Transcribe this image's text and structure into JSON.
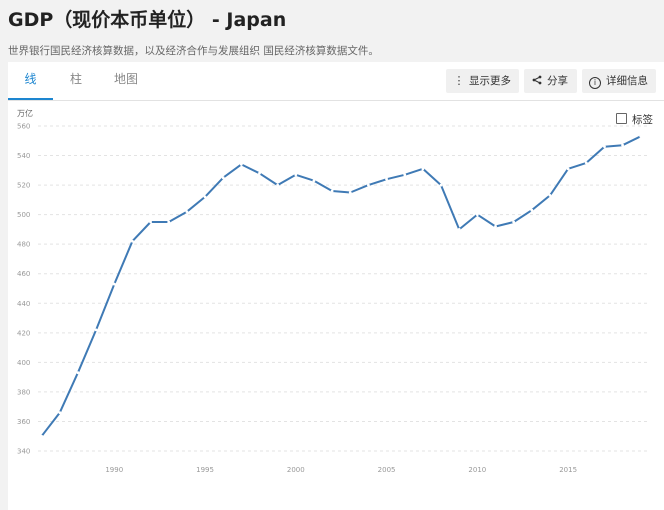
{
  "header": {
    "title": "GDP（现价本币单位） - Japan",
    "subtitle": "世界银行国民经济核算数据，以及经济合作与发展组织 国民经济核算数据文件。"
  },
  "tabs": [
    {
      "label": "线",
      "active": true
    },
    {
      "label": "柱",
      "active": false
    },
    {
      "label": "地图",
      "active": false
    }
  ],
  "actions": {
    "more_label": "显示更多",
    "share_label": "分享",
    "detail_label": "详细信息",
    "more_icon": "vertical-ellipsis-icon",
    "share_icon": "share-icon",
    "detail_icon": "info-icon"
  },
  "label_toggle": {
    "label": "标签",
    "checked": false
  },
  "colors": {
    "line": "#3f7ab5",
    "accent": "#1d86d0",
    "grid": "#e3e3e3"
  },
  "chart_data": {
    "type": "line",
    "unit": "万亿",
    "ylim": [
      340,
      560
    ],
    "yticks": [
      340,
      360,
      380,
      400,
      420,
      440,
      460,
      480,
      500,
      520,
      540,
      560
    ],
    "xticks": [
      1990,
      1995,
      2000,
      2005,
      2010,
      2015
    ],
    "grid": true,
    "series": [
      {
        "x": [
          1986,
          1987,
          1988,
          1989,
          1990,
          1991,
          1992,
          1993,
          1994,
          1995,
          1996,
          1997,
          1998,
          1999,
          2000,
          2001,
          2002,
          2003,
          2004,
          2005,
          2006,
          2007,
          2008,
          2009,
          2010,
          2011,
          2012,
          2013,
          2014,
          2015,
          2016,
          2017,
          2018,
          2019
        ],
        "values": [
          350,
          366,
          393,
          422,
          453,
          482,
          495,
          495,
          502,
          512,
          525,
          534,
          528,
          520,
          527,
          523,
          516,
          515,
          520,
          524,
          527,
          531,
          520,
          490,
          500,
          492,
          495,
          503,
          513,
          531,
          535,
          546,
          547,
          553
        ]
      }
    ]
  }
}
